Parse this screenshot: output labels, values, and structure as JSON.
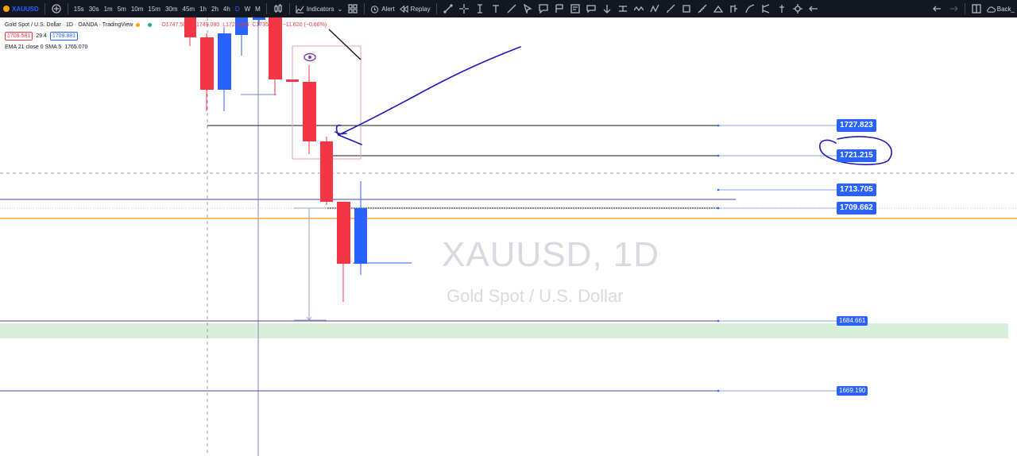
{
  "toolbar": {
    "symbol": "XAUUSD",
    "add_icon": "plus-circle-icon",
    "timeframes": [
      "15s",
      "30s",
      "1m",
      "5m",
      "10m",
      "15m",
      "30m",
      "45m",
      "1h",
      "2h",
      "4h",
      "D",
      "W",
      "M"
    ],
    "active_timeframe": "D",
    "indicators_label": "Indicators",
    "alert_label": "Alert",
    "replay_label": "Replay",
    "back_label": "Back_"
  },
  "legend": {
    "title": "Gold Spot / U.S. Dollar · 1D · OANDA · TradingView",
    "open": "O1747.500",
    "high": "H1749.090",
    "low": "L1727.850",
    "close": "C1735.880",
    "change": "−11.620 (−0.66%)",
    "sell_price": "1709.581",
    "spread": "29.4",
    "buy_price": "1709.881",
    "indicator": "EMA 21 close 0 SMA 5",
    "indicator_value": "1765.070"
  },
  "watermark": {
    "symbol": "XAUUSD, 1D",
    "description": "Gold Spot / U.S. Dollar"
  },
  "price_labels": {
    "p1": "1727.823",
    "p2": "1721.215",
    "p3": "1713.705",
    "p4": "1709.662",
    "p5": "1684.661",
    "p6": "1669.190"
  },
  "colors": {
    "up": "#2962ff",
    "down": "#f23645",
    "label_bg": "#2962ff",
    "zone": "#d9efd9",
    "orange_line": "#f0a83c",
    "purple_line": "#5b3fa8",
    "toolbar_bg": "#131722"
  }
}
